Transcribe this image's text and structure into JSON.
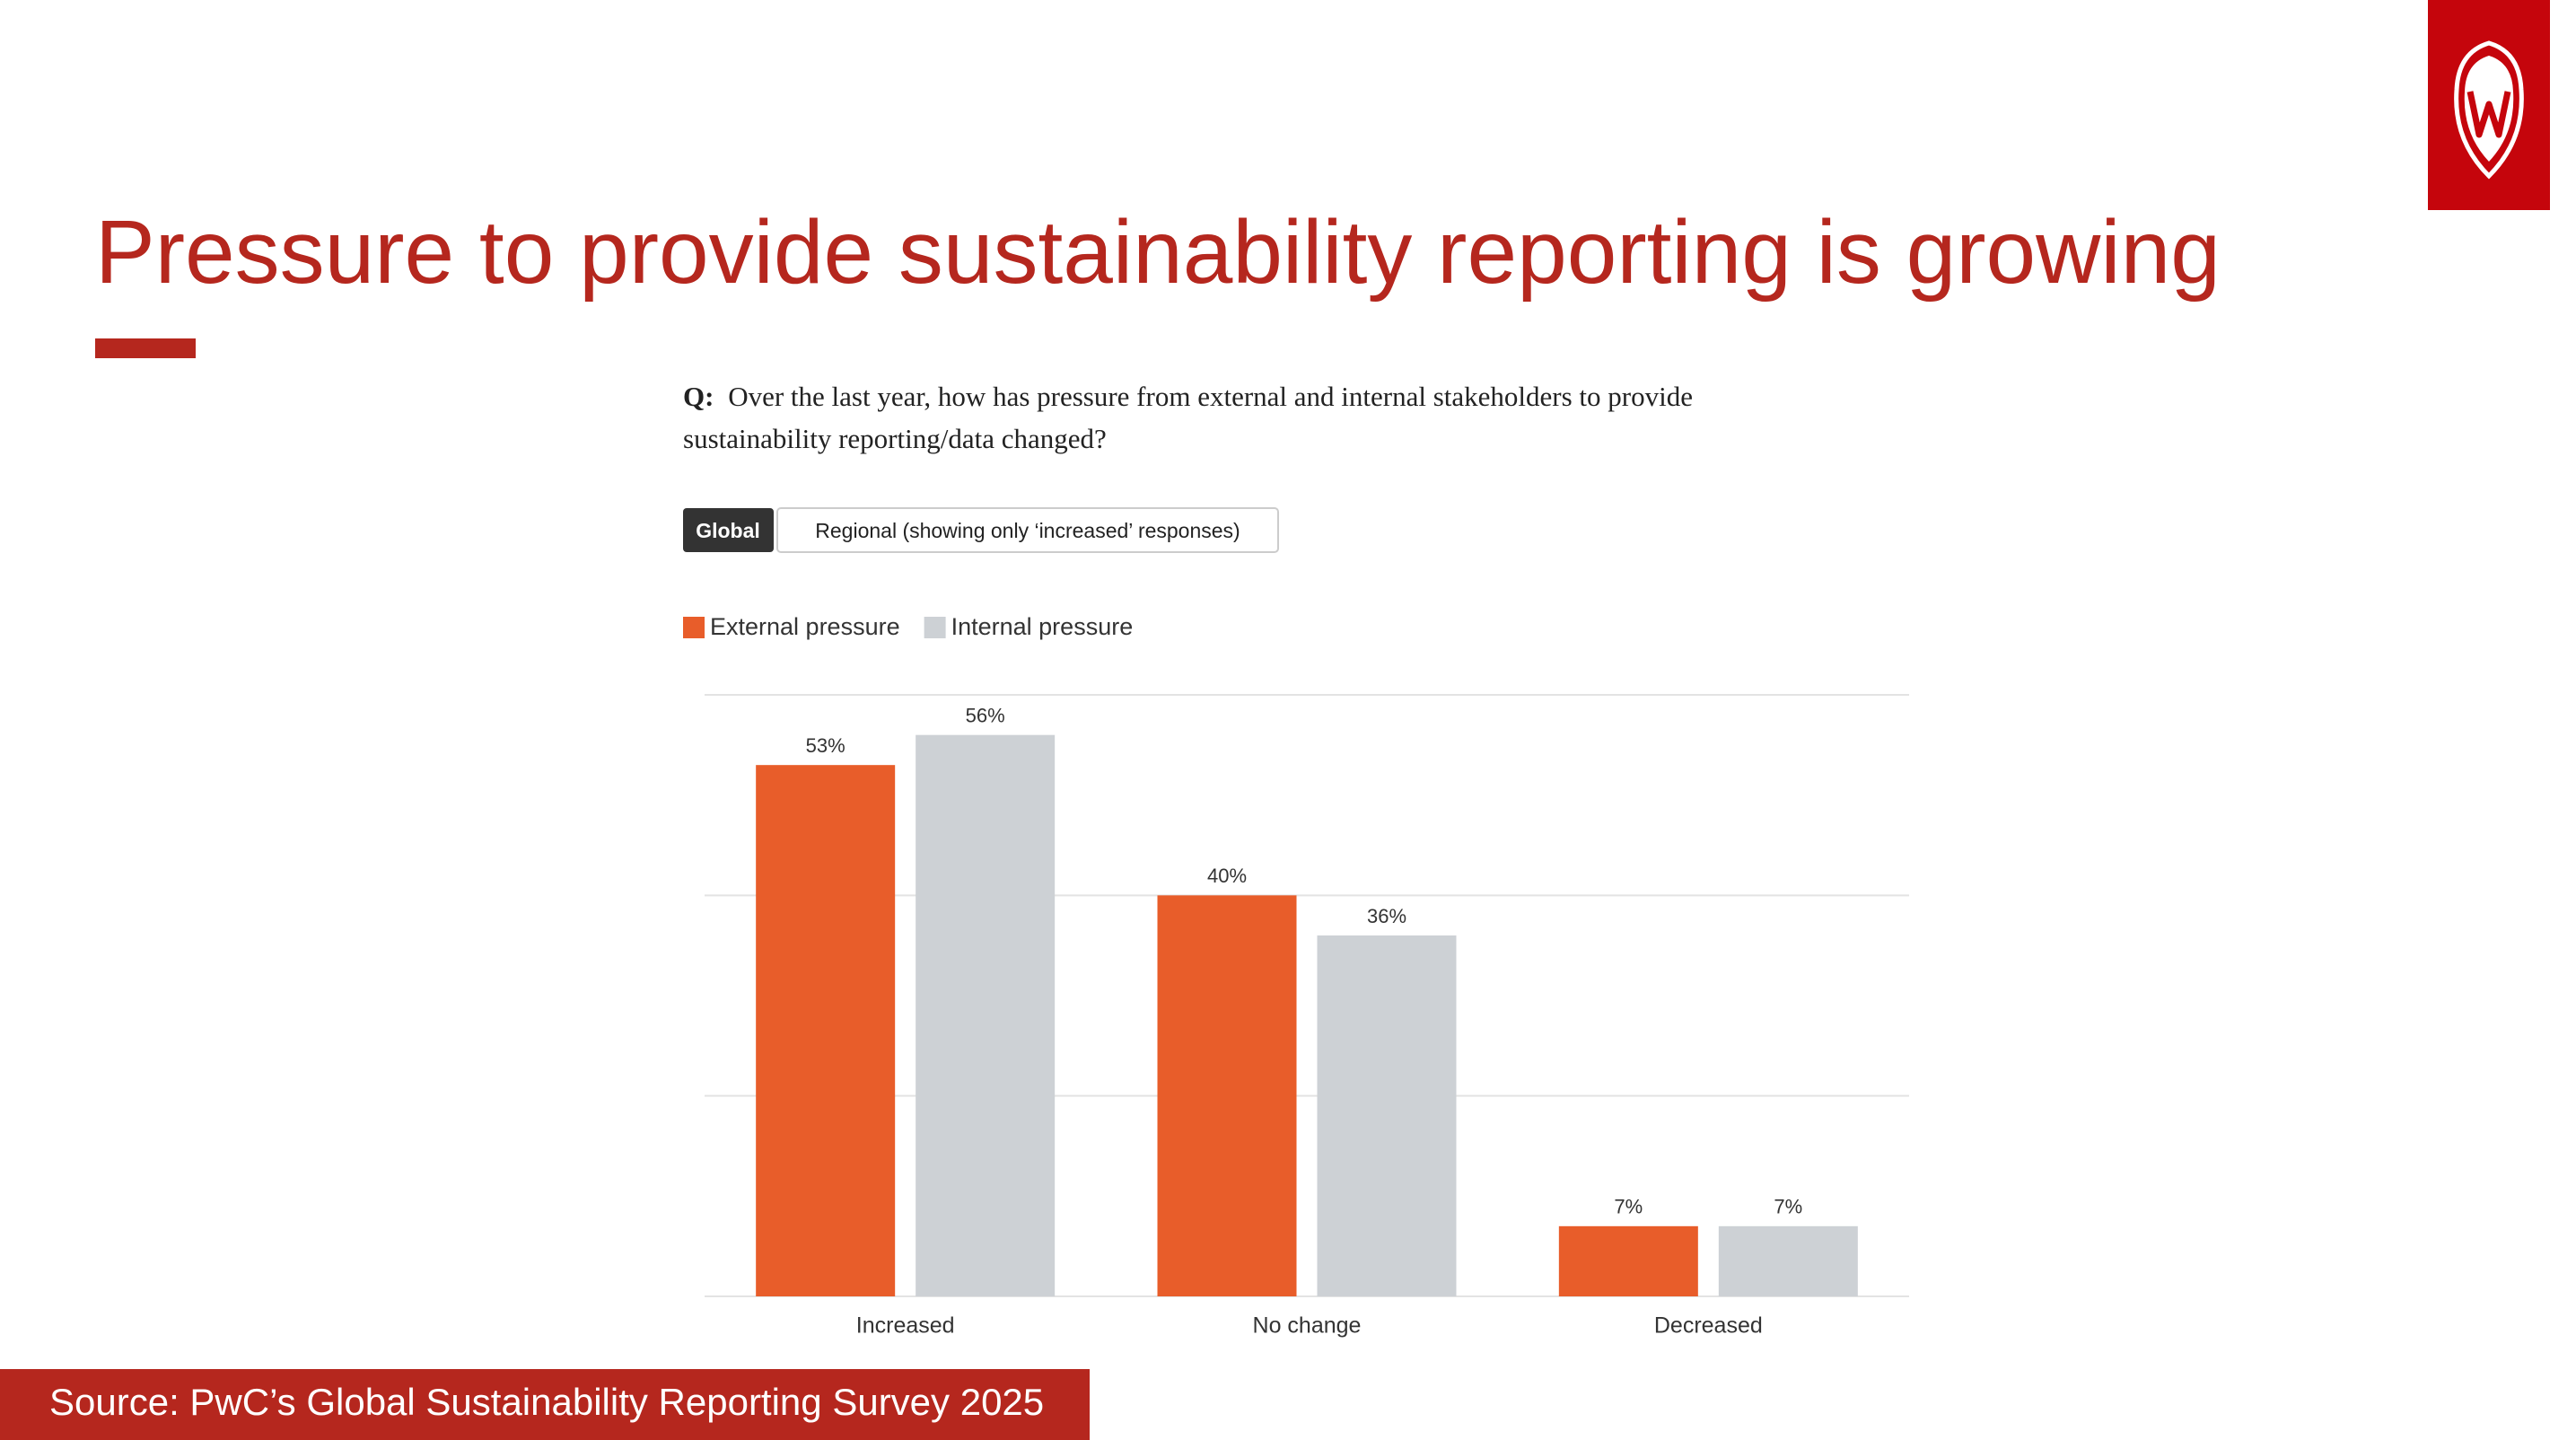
{
  "header": {
    "title": "Pressure to provide sustainability reporting is growing"
  },
  "question": {
    "label": "Q:",
    "line1": "Over the last year, how has pressure from external and internal stakeholders to provide",
    "line2": "sustainability reporting/data changed?"
  },
  "tabs": [
    "Global",
    "Regional (showing only ‘increased’ responses)"
  ],
  "chart_data": {
    "type": "bar",
    "categories": [
      "Increased",
      "No change",
      "Decreased"
    ],
    "series": [
      {
        "name": "External pressure",
        "color": "#e85d2a",
        "values": [
          53,
          40,
          7
        ],
        "value_labels": [
          "53%",
          "40%",
          "7%"
        ]
      },
      {
        "name": "Internal pressure",
        "color": "#cdd1d5",
        "values": [
          56,
          36,
          7
        ],
        "value_labels": [
          "56%",
          "36%",
          "7%"
        ]
      }
    ],
    "ylim": [
      0,
      60
    ],
    "yticks": [
      0,
      20,
      40,
      60
    ],
    "grid": true,
    "legend": "top-left"
  },
  "footer": {
    "source": "Source: PwC’s Global Sustainability Reporting Survey 2025"
  }
}
